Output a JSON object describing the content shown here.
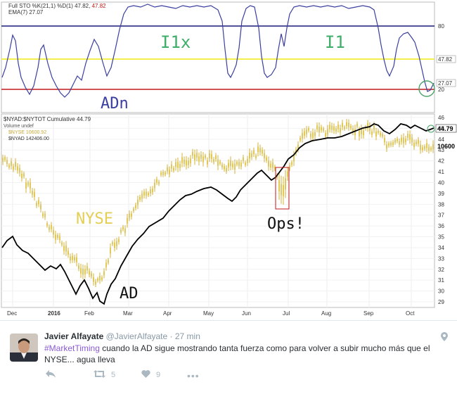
{
  "chart": {
    "top_panel": {
      "legend_line1": "Full STO %K(21,1) %D(1) 47.82,",
      "legend_line1_value": "47.82",
      "legend_line2": "EMA(7) 27.07",
      "right_labels": {
        "l80": "80",
        "l47": "47.82",
        "l27": "27.07",
        "l20": "20"
      },
      "annotations": {
        "i1x": "I1x",
        "i1": "I1",
        "adn": "ADn"
      }
    },
    "bottom_panel": {
      "legend_line1": "$NYAD:$NYTOT Cumulative 44.79",
      "legend_line2": "Volume undef",
      "legend_line3": "$NYSE 10600.92",
      "legend_line4": "$NYAD 142406.00",
      "current_label": "44.79",
      "nyse_label": "10600",
      "annotations": {
        "nyse": "NYSE",
        "ad": "AD",
        "ops": "Ops!"
      }
    },
    "x_ticks": [
      "Dec",
      "2016",
      "Feb",
      "Mar",
      "Apr",
      "May",
      "Jun",
      "Jul",
      "Aug",
      "Sep",
      "Oct"
    ],
    "y_ticks": [
      "46",
      "45",
      "44",
      "43",
      "42",
      "41",
      "40",
      "39",
      "38",
      "37",
      "36",
      "35",
      "34",
      "33",
      "32",
      "31",
      "30",
      "29"
    ],
    "colors": {
      "stoch": "#3a3fa0",
      "line80": "#1a1a7a",
      "line50": "#f3ef4c",
      "line20": "#c21a1a",
      "nyse": "#d4b23a",
      "ad": "#000000"
    }
  },
  "chart_data": {
    "type": "line",
    "x": [
      "Dec",
      "2016",
      "Feb",
      "Mar",
      "Apr",
      "May",
      "Jun",
      "Jul",
      "Aug",
      "Sep",
      "Oct"
    ],
    "ylim": [
      28.5,
      46.5
    ],
    "series": [
      {
        "name": "$NYAD:$NYTOT Cumulative",
        "values": [
          33.5,
          32.0,
          29.2,
          33.5,
          36.2,
          37.8,
          39.5,
          43.0,
          44.6,
          45.5,
          44.79
        ]
      },
      {
        "name": "$NYSE",
        "values": [
          40.5,
          35.5,
          31.5,
          38.0,
          40.5,
          41.0,
          41.5,
          44.0,
          44.3,
          44.5,
          43.0
        ]
      }
    ]
  },
  "tweet": {
    "name": "Javier Alfayate",
    "handle": "@JavierAlfayate",
    "sep": "·",
    "time": "27 min",
    "hashtag": "#MarketTiming",
    "text": " cuando la AD sigue mostrando tanta fuerza como para volver a subir mucho más que el NYSE... agua lleva",
    "retweets": "5",
    "likes": "9"
  }
}
